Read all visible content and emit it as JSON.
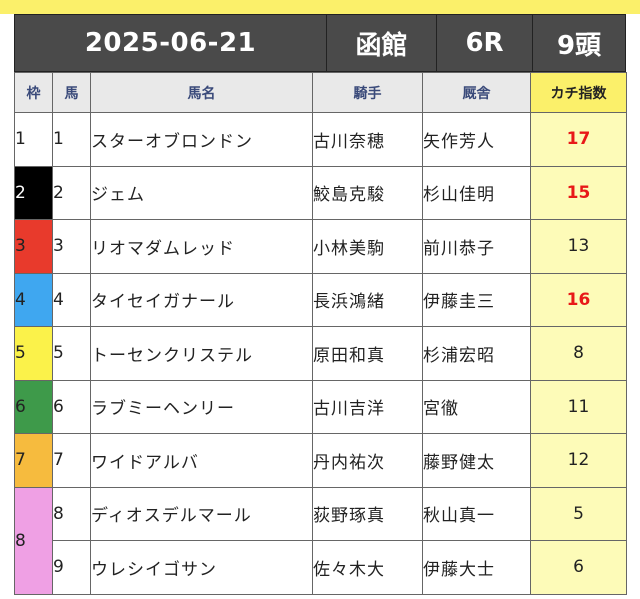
{
  "header": {
    "date": "2025-06-21",
    "venue": "函館",
    "race": "6R",
    "runners": "9頭"
  },
  "columns": {
    "waku": "枠",
    "uma": "馬",
    "name": "馬名",
    "jockey": "騎手",
    "trainer": "厩舎",
    "kachi": "カチ指数"
  },
  "colors": {
    "accent_yellow": "#fbf06a",
    "header_bg": "#4a4a4a",
    "highlight_red": "#e81818",
    "kachi_cell_bg": "#fdfbb8",
    "waku_1": "#ffffff",
    "waku_2": "#000000",
    "waku_3": "#e83a2c",
    "waku_4": "#3fa7f0",
    "waku_5": "#fbf24a",
    "waku_6": "#3e9a4a",
    "waku_7": "#f6bb3e",
    "waku_8": "#efa0e4"
  },
  "rows": [
    {
      "waku": "1",
      "uma": "1",
      "name": "スターオブロンドン",
      "jockey": "古川奈穂",
      "trainer": "矢作芳人",
      "kachi": "17",
      "highlight": true
    },
    {
      "waku": "2",
      "uma": "2",
      "name": "ジェム",
      "jockey": "鮫島克駿",
      "trainer": "杉山佳明",
      "kachi": "15",
      "highlight": true
    },
    {
      "waku": "3",
      "uma": "3",
      "name": "リオマダムレッド",
      "jockey": "小林美駒",
      "trainer": "前川恭子",
      "kachi": "13",
      "highlight": false
    },
    {
      "waku": "4",
      "uma": "4",
      "name": "タイセイガナール",
      "jockey": "長浜鴻緒",
      "trainer": "伊藤圭三",
      "kachi": "16",
      "highlight": true
    },
    {
      "waku": "5",
      "uma": "5",
      "name": "トーセンクリステル",
      "jockey": "原田和真",
      "trainer": "杉浦宏昭",
      "kachi": "8",
      "highlight": false
    },
    {
      "waku": "6",
      "uma": "6",
      "name": "ラブミーヘンリー",
      "jockey": "古川吉洋",
      "trainer": "宮徹",
      "kachi": "11",
      "highlight": false
    },
    {
      "waku": "7",
      "uma": "7",
      "name": "ワイドアルバ",
      "jockey": "丹内祐次",
      "trainer": "藤野健太",
      "kachi": "12",
      "highlight": false
    },
    {
      "waku": "8",
      "uma": "8",
      "name": "ディオスデルマール",
      "jockey": "荻野琢真",
      "trainer": "秋山真一",
      "kachi": "5",
      "highlight": false
    },
    {
      "waku": "8",
      "uma": "9",
      "name": "ウレシイゴサン",
      "jockey": "佐々木大",
      "trainer": "伊藤大士",
      "kachi": "6",
      "highlight": false
    }
  ]
}
